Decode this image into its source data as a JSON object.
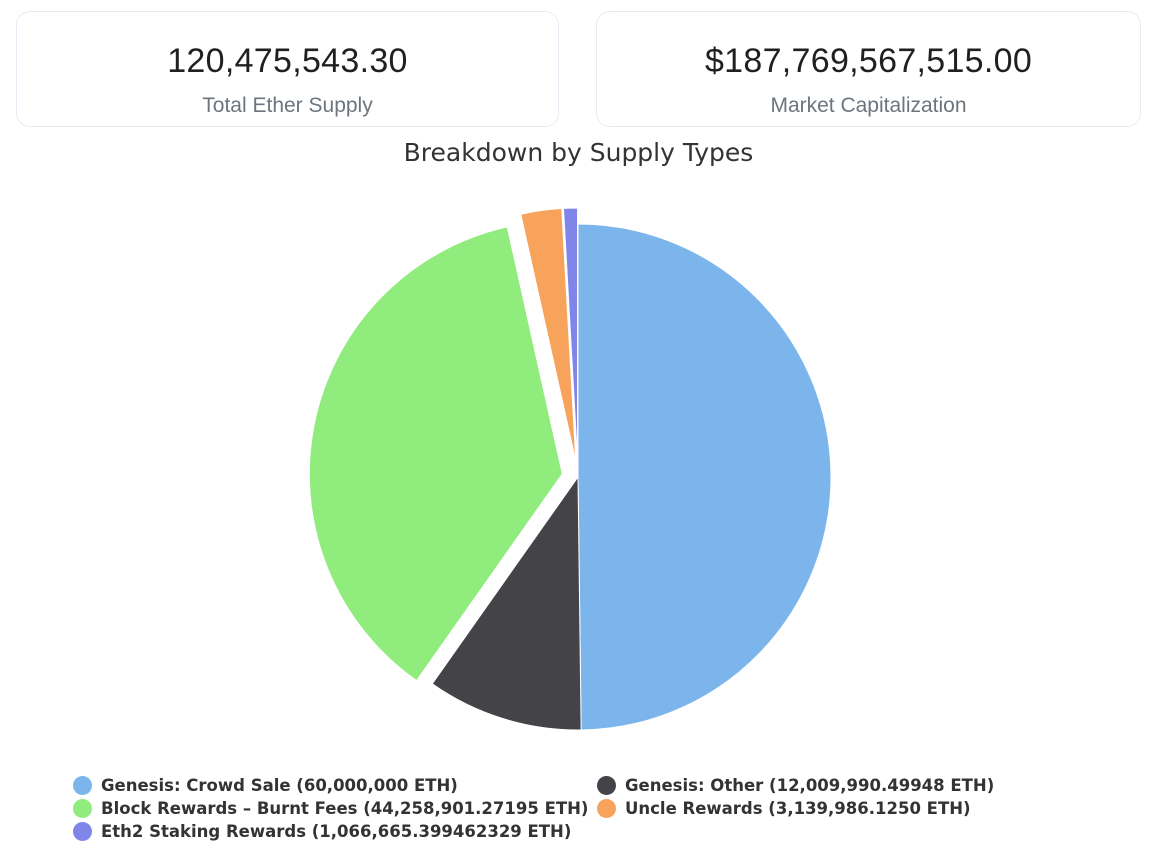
{
  "stats": {
    "total_supply": {
      "value": "120,475,543.30",
      "label": "Total Ether Supply"
    },
    "market_cap": {
      "value": "$187,769,567,515.00",
      "label": "Market Capitalization"
    }
  },
  "chart_data": {
    "type": "pie",
    "title": "Breakdown by Supply Types",
    "legend_position": "bottom",
    "slices": [
      {
        "name": "Genesis: Crowd Sale",
        "value": 60000000,
        "legend": "Genesis: Crowd Sale (60,000,000 ETH)",
        "color": "#7cb5ec",
        "exploded": false
      },
      {
        "name": "Genesis: Other",
        "value": 12009990.49948,
        "legend": "Genesis: Other (12,009,990.49948 ETH)",
        "color": "#434348",
        "exploded": false
      },
      {
        "name": "Block Rewards - Burnt Fees",
        "value": 44258901.27195,
        "legend": "Block Rewards – Burnt Fees (44,258,901.27195 ETH)",
        "color": "#90ed7d",
        "exploded": true
      },
      {
        "name": "Uncle Rewards",
        "value": 3139986.125,
        "legend": "Uncle Rewards (3,139,986.1250 ETH)",
        "color": "#f7a35c",
        "exploded": true
      },
      {
        "name": "Eth2 Staking Rewards",
        "value": 1066665.399462329,
        "legend": "Eth2 Staking Rewards (1,066,665.399462329 ETH)",
        "color": "#8085e9",
        "exploded": true
      }
    ]
  }
}
